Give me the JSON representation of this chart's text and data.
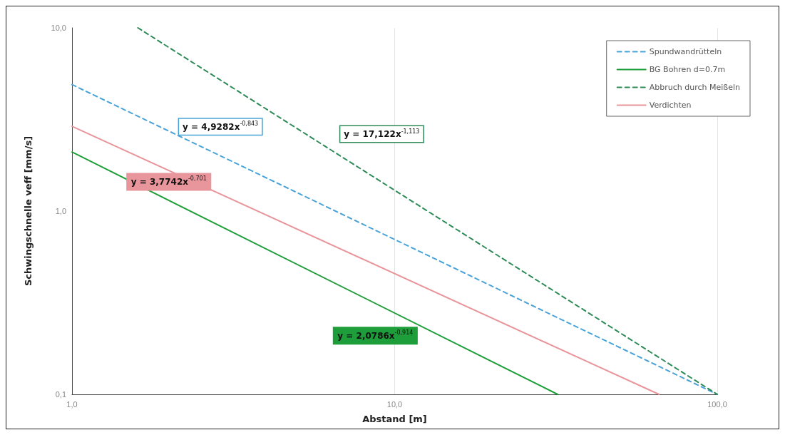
{
  "chart_data": {
    "type": "line",
    "xlabel": "Abstand [m]",
    "ylabel": "Schwingschnelle veff [mm/s]",
    "log": "xy",
    "xlim": [
      1,
      100
    ],
    "ylim": [
      0.1,
      10
    ],
    "xticks": [
      {
        "value": 1,
        "label": "1,0"
      },
      {
        "value": 10,
        "label": "10,0"
      },
      {
        "value": 100,
        "label": "100,0"
      }
    ],
    "yticks": [
      {
        "value": 0.1,
        "label": "0,1"
      },
      {
        "value": 1,
        "label": "1,0"
      },
      {
        "value": 10,
        "label": "10,0"
      }
    ],
    "grid": "x",
    "legend": "top right",
    "marker": "none",
    "series": [
      {
        "name": "Spundwandrütteln",
        "color": "#4aa3d8",
        "line_style": "dashed",
        "x": [
          1,
          100
        ],
        "values": [
          4.9,
          0.1
        ]
      },
      {
        "name": "BG Bohren d=0.7m",
        "color": "#1e9e3a",
        "line_style": "solid",
        "x": [
          1,
          32
        ],
        "values": [
          2.1,
          0.1
        ]
      },
      {
        "name": "Abbruch durch Meißeln",
        "color": "#2e8b57",
        "line_style": "dashed",
        "x": [
          1.6,
          100
        ],
        "values": [
          10,
          0.1
        ]
      },
      {
        "name": "Verdichten",
        "color": "#e8959b",
        "line_style": "solid",
        "x": [
          1,
          66
        ],
        "values": [
          2.9,
          0.1
        ]
      }
    ],
    "annotations": [
      "y = 4,9282x$^{-0,843}$",
      "y = 2,0786x$^{-0,914}$",
      "y = 17,122x$^{-1,113}$",
      "y = 3,7742x$^{-0,701}$"
    ]
  }
}
